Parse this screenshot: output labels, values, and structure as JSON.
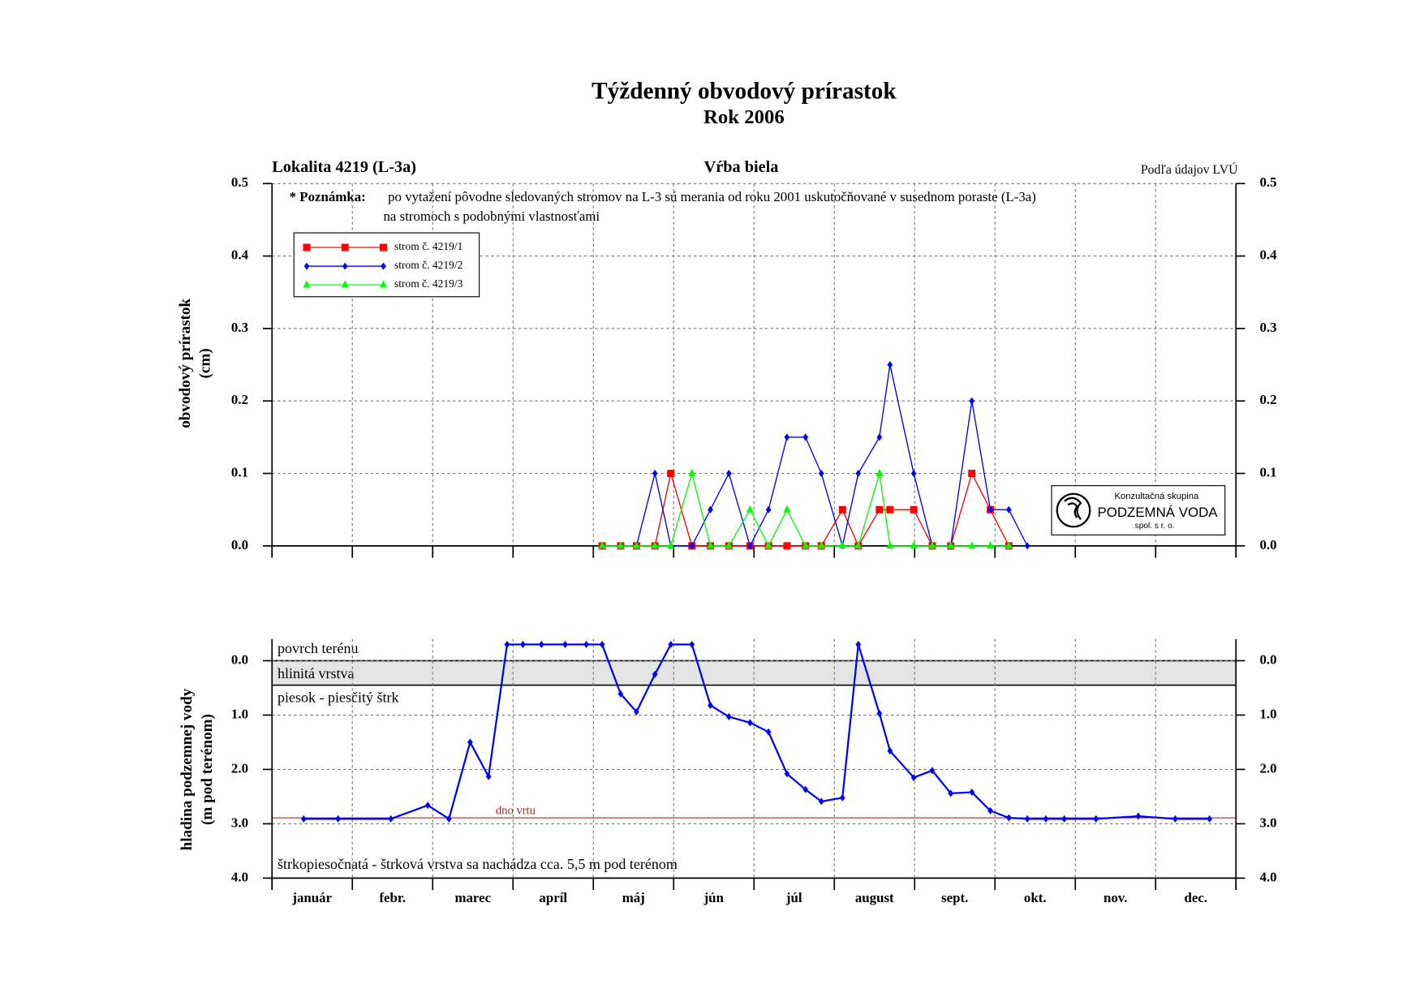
{
  "chart_data": [
    {
      "type": "line",
      "title": "Týždenný obvodový prírastok",
      "subtitle": "Rok 2006",
      "header_left": "Lokalita 4219 (L-3a)",
      "header_center": "Vŕba biela",
      "header_right": "Podľa údajov LVÚ",
      "note": {
        "label": "* Poznámka:",
        "lines": [
          "po vytažení pôvodne sledovaných stromov na L-3 sú merania od roku 2001 uskutočňované v susednom poraste (L-3a)",
          "na stromoch s podobnými vlastnosťami"
        ]
      },
      "y_label": [
        "obvodový prírastok",
        "(cm)"
      ],
      "categories": [
        "január",
        "febr.",
        "marec",
        "apríl",
        "máj",
        "jún",
        "júl",
        "august",
        "sept.",
        "okt.",
        "nov.",
        "dec."
      ],
      "xlim": [
        0,
        365
      ],
      "x": [
        125,
        132,
        138,
        145,
        151,
        159,
        166,
        173,
        181,
        188,
        195,
        202,
        208,
        216,
        222,
        230,
        234,
        243,
        250,
        257,
        265,
        272,
        279,
        286
      ],
      "series": [
        {
          "name": "strom č. 4219/1",
          "color": "#ff0000",
          "marker": "square",
          "values": [
            0,
            0,
            0,
            0,
            0.1,
            0,
            0,
            0,
            0,
            0,
            0,
            0,
            0,
            0.05,
            0,
            0.05,
            0.05,
            0.05,
            0,
            0,
            0.1,
            0.05,
            0,
            null
          ]
        },
        {
          "name": "strom č. 4219/2",
          "color": "#0000ff",
          "marker": "diamond",
          "values": [
            0,
            0,
            0,
            0.1,
            0,
            0,
            0.05,
            0.1,
            0,
            0.05,
            0.15,
            0.15,
            0.1,
            0,
            0.1,
            0.15,
            0.25,
            0.1,
            0,
            0,
            0.2,
            0.05,
            0.05,
            0
          ]
        },
        {
          "name": "strom č. 4219/3",
          "color": "#00ff00",
          "marker": "triangle",
          "values": [
            0,
            0,
            0,
            0,
            0,
            0.1,
            0,
            0,
            0.05,
            0,
            0.05,
            0,
            0,
            0,
            0,
            0.1,
            0,
            0,
            0,
            0,
            0,
            0,
            0,
            null
          ]
        }
      ],
      "ylim": [
        0,
        0.5
      ],
      "yticks": [
        {
          "value": 0,
          "label": "0.0"
        },
        {
          "value": 0.1,
          "label": "0.1"
        },
        {
          "value": 0.2,
          "label": "0.2"
        },
        {
          "value": 0.3,
          "label": "0.3"
        },
        {
          "value": 0.4,
          "label": "0.4"
        },
        {
          "value": 0.5,
          "label": "0.5"
        }
      ],
      "grid": true
    },
    {
      "type": "line",
      "y_label": [
        "hladina podzemnej vody",
        "(m pod terénom)"
      ],
      "categories": [
        "január",
        "febr.",
        "marec",
        "apríl",
        "máj",
        "jún",
        "júl",
        "august",
        "sept.",
        "okt.",
        "nov.",
        "dec."
      ],
      "xlim": [
        0,
        365
      ],
      "x": [
        12,
        25,
        45,
        59,
        67,
        75,
        82,
        89,
        95,
        102,
        111,
        119,
        125,
        132,
        138,
        145,
        151,
        159,
        166,
        173,
        181,
        188,
        195,
        202,
        208,
        216,
        222,
        230,
        234,
        243,
        250,
        257,
        265,
        272,
        279,
        286,
        293,
        300,
        312,
        328,
        342,
        355
      ],
      "series": [
        {
          "color": "#0000ff",
          "marker": "diamond",
          "values": [
            2.91,
            2.91,
            2.91,
            2.66,
            2.91,
            1.5,
            2.13,
            -0.3,
            -0.3,
            -0.3,
            -0.3,
            -0.3,
            -0.3,
            0.61,
            0.94,
            0.25,
            -0.3,
            -0.3,
            0.82,
            1.03,
            1.14,
            1.31,
            2.08,
            2.37,
            2.59,
            2.52,
            -0.3,
            0.97,
            1.66,
            2.15,
            2.02,
            2.44,
            2.42,
            2.76,
            2.89,
            2.91,
            2.91,
            2.91,
            2.91,
            2.86,
            2.91,
            2.91
          ]
        }
      ],
      "layers": [
        {
          "label": "povrch terénu"
        },
        {
          "label": "hlinitá vrstva"
        },
        {
          "label": "piesok - piesčitý štrk"
        }
      ],
      "layer_band": [
        0,
        0.45
      ],
      "reference": {
        "label": "dno vrtu",
        "value": 2.89,
        "color": "#a52a2a"
      },
      "bottom_note": "štrkopiesočnatá - štrková vrstva sa nachádza cca. 5,5 m pod terénom",
      "ylim": [
        4.0,
        -0.4
      ],
      "yticks": [
        {
          "value": 0,
          "label": "0.0"
        },
        {
          "value": 1,
          "label": "1.0"
        },
        {
          "value": 2,
          "label": "2.0"
        },
        {
          "value": 3,
          "label": "3.0"
        },
        {
          "value": 4,
          "label": "4.0"
        }
      ],
      "grid": true
    }
  ],
  "logo": {
    "top": "Konzultačná skupina",
    "name": "PODZEMNÁ VODA",
    "bottom": "spol. s r. o."
  }
}
